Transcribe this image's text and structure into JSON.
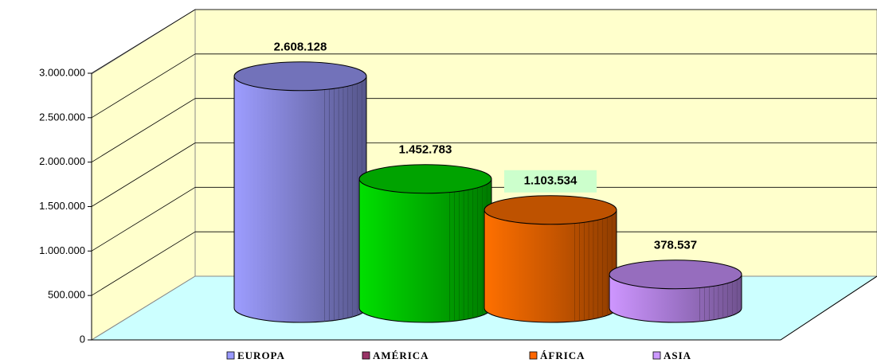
{
  "chart_data": {
    "type": "cylinder3d",
    "categories": [
      "EUROPA",
      "AMÉRICA",
      "ÁFRICA",
      "ASIA"
    ],
    "values": [
      2608128,
      1452783,
      1103534,
      378537
    ],
    "value_labels": [
      "2.608.128",
      "1.452.783",
      "1.103.534",
      "378.537"
    ],
    "colors": [
      "#8f8fe8",
      "#00cc00",
      "#ee6600",
      "#bb88ee"
    ],
    "legend_colors": [
      "#9999ff",
      "#993366",
      "#ff6600",
      "#cc99ff"
    ],
    "ylim": [
      0,
      3000000
    ],
    "yticks": [
      {
        "value": 0,
        "label": "0"
      },
      {
        "value": 500000,
        "label": "500.000"
      },
      {
        "value": 1000000,
        "label": "1.000.000"
      },
      {
        "value": 1500000,
        "label": "1.500.000"
      },
      {
        "value": 2000000,
        "label": "2.000.000"
      },
      {
        "value": 2500000,
        "label": "2.500.000"
      },
      {
        "value": 3000000,
        "label": "3.000.000"
      }
    ],
    "grid": true
  }
}
